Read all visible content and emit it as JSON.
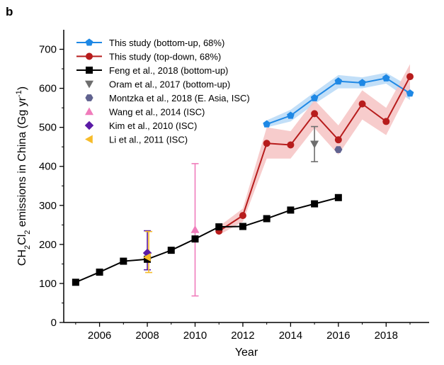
{
  "chart_data": {
    "type": "line",
    "panel_label": "b",
    "xlabel": "Year",
    "ylabel_parts": [
      "CH",
      "2",
      "Cl",
      "2",
      " emissions in China (Gg yr",
      "-1",
      ")"
    ],
    "xlim": [
      2004.5,
      2019.8
    ],
    "ylim": [
      0,
      750
    ],
    "xticks": [
      2006,
      2008,
      2010,
      2012,
      2014,
      2016,
      2018
    ],
    "xtick_labels": [
      "2006",
      "2008",
      "2010",
      "2012",
      "2014",
      "2016",
      "2018"
    ],
    "yticks": [
      0,
      100,
      200,
      300,
      400,
      500,
      600,
      700
    ],
    "ytick_labels": [
      "0",
      "100",
      "200",
      "300",
      "400",
      "500",
      "600",
      "700"
    ],
    "series": [
      {
        "name": "This study (bottom-up, 68%)",
        "color": "#1e88e5",
        "band_color": "#bbdcf7",
        "marker": "pentagon",
        "x": [
          2013,
          2014,
          2015,
          2016,
          2017,
          2018,
          2019
        ],
        "y": [
          508,
          530,
          575,
          618,
          614,
          626,
          587
        ],
        "lower": [
          500,
          515,
          560,
          600,
          600,
          612,
          570
        ],
        "upper": [
          518,
          545,
          590,
          634,
          628,
          640,
          604
        ]
      },
      {
        "name": "This study (top-down, 68%)",
        "color": "#b71c1c",
        "band_color": "#f6c7c7",
        "marker": "circle",
        "x": [
          2011,
          2012,
          2013,
          2014,
          2015,
          2016,
          2017,
          2018,
          2019
        ],
        "y": [
          234,
          274,
          459,
          455,
          535,
          468,
          560,
          515,
          630
        ],
        "lower": [
          224,
          258,
          420,
          420,
          498,
          430,
          520,
          480,
          600
        ],
        "upper": [
          246,
          292,
          500,
          490,
          570,
          505,
          595,
          550,
          662
        ]
      },
      {
        "name": "Feng et al., 2018 (bottom-up)",
        "color": "#000000",
        "marker": "square",
        "x": [
          2005,
          2006,
          2007,
          2008,
          2009,
          2010,
          2011,
          2012,
          2013,
          2014,
          2015,
          2016
        ],
        "y": [
          103,
          129,
          157,
          162,
          185,
          214,
          245,
          246,
          266,
          288,
          304,
          320
        ]
      },
      {
        "name": "Oram et al., 2017 (bottom-up)",
        "color": "#6e6e6e",
        "marker": "triangle-down",
        "x": [
          2015
        ],
        "y": [
          457
        ],
        "err_low": [
          412
        ],
        "err_high": [
          502
        ]
      },
      {
        "name": "Montzka et al., 2018 (E. Asia, ISC)",
        "color": "#60628f",
        "marker": "hexagon",
        "x": [
          2016
        ],
        "y": [
          443
        ]
      },
      {
        "name": "Wang et al., 2014 (ISC)",
        "color": "#f07cbb",
        "marker": "triangle-up",
        "x": [
          2010
        ],
        "y": [
          238
        ],
        "err_low": [
          68
        ],
        "err_high": [
          407
        ]
      },
      {
        "name": "Kim et al., 2010 (ISC)",
        "color": "#5a1aa6",
        "marker": "diamond",
        "x": [
          2008
        ],
        "y": [
          178
        ],
        "err_low": [
          135
        ],
        "err_high": [
          235
        ]
      },
      {
        "name": "Li et al., 2011 (ISC)",
        "color": "#f7bc2a",
        "marker": "triangle-left",
        "x": [
          2008
        ],
        "y": [
          167
        ],
        "err_low": [
          128
        ],
        "err_high": [
          233
        ]
      }
    ],
    "legend_position": "top-left",
    "grid": false
  }
}
